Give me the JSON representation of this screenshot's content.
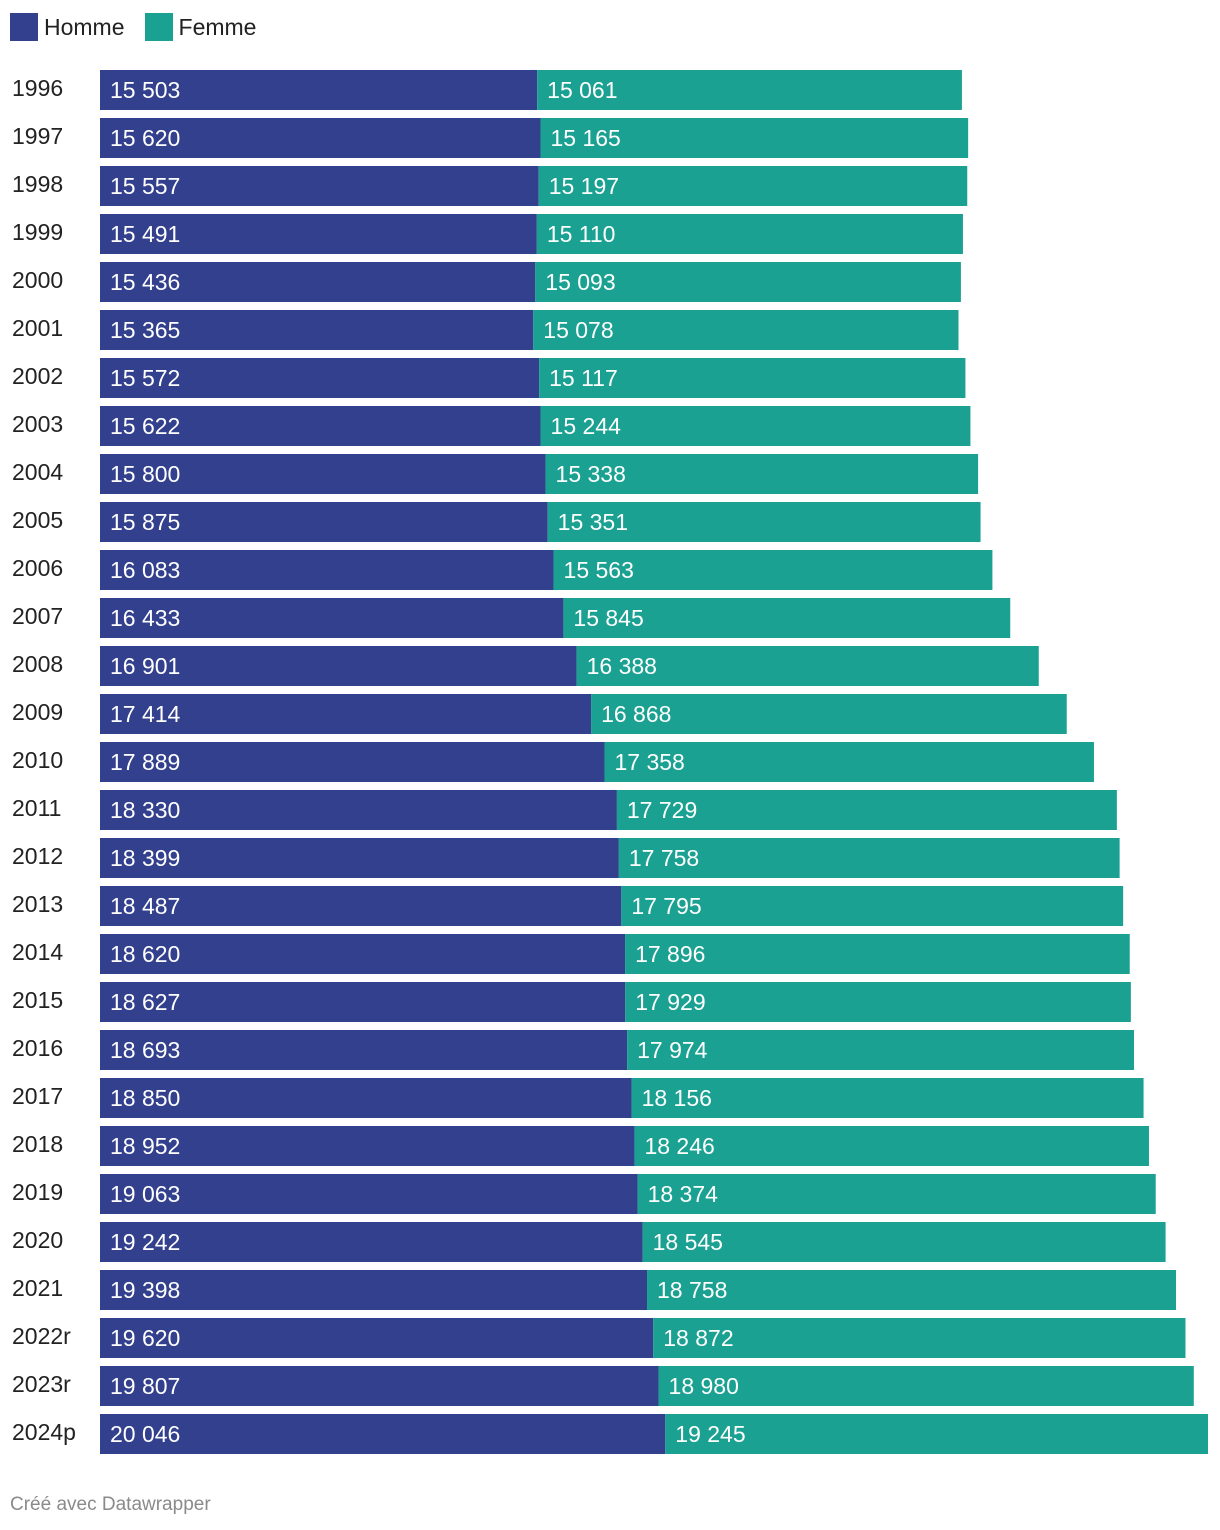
{
  "chart_data": {
    "type": "bar",
    "orientation": "horizontal",
    "stacked": true,
    "categories": [
      "1996",
      "1997",
      "1998",
      "1999",
      "2000",
      "2001",
      "2002",
      "2003",
      "2004",
      "2005",
      "2006",
      "2007",
      "2008",
      "2009",
      "2010",
      "2011",
      "2012",
      "2013",
      "2014",
      "2015",
      "2016",
      "2017",
      "2018",
      "2019",
      "2020",
      "2021",
      "2022r",
      "2023r",
      "2024p"
    ],
    "series": [
      {
        "name": "Homme",
        "color": "#33408d",
        "values": [
          15503,
          15620,
          15557,
          15491,
          15436,
          15365,
          15572,
          15622,
          15800,
          15875,
          16083,
          16433,
          16901,
          17414,
          17889,
          18330,
          18399,
          18487,
          18620,
          18627,
          18693,
          18850,
          18952,
          19063,
          19242,
          19398,
          19620,
          19807,
          20046
        ],
        "labels": [
          "15 503",
          "15 620",
          "15 557",
          "15 491",
          "15 436",
          "15 365",
          "15 572",
          "15 622",
          "15 800",
          "15 875",
          "16 083",
          "16 433",
          "16 901",
          "17 414",
          "17 889",
          "18 330",
          "18 399",
          "18 487",
          "18 620",
          "18 627",
          "18 693",
          "18 850",
          "18 952",
          "19 063",
          "19 242",
          "19 398",
          "19 620",
          "19 807",
          "20 046"
        ]
      },
      {
        "name": "Femme",
        "color": "#1aa191",
        "values": [
          15061,
          15165,
          15197,
          15110,
          15093,
          15078,
          15117,
          15244,
          15338,
          15351,
          15563,
          15845,
          16388,
          16868,
          17358,
          17729,
          17758,
          17795,
          17896,
          17929,
          17974,
          18156,
          18246,
          18374,
          18545,
          18758,
          18872,
          18980,
          19245
        ],
        "labels": [
          "15 061",
          "15 165",
          "15 197",
          "15 110",
          "15 093",
          "15 078",
          "15 117",
          "15 244",
          "15 338",
          "15 351",
          "15 563",
          "15 845",
          "16 388",
          "16 868",
          "17 358",
          "17 729",
          "17 758",
          "17 795",
          "17 896",
          "17 929",
          "17 974",
          "18 156",
          "18 246",
          "18 374",
          "18 545",
          "18 758",
          "18 872",
          "18 980",
          "19 245"
        ]
      }
    ],
    "xlim": [
      0,
      39291
    ],
    "legend_position": "top-left",
    "grid": false
  },
  "footer": {
    "credit": "Créé avec Datawrapper"
  }
}
